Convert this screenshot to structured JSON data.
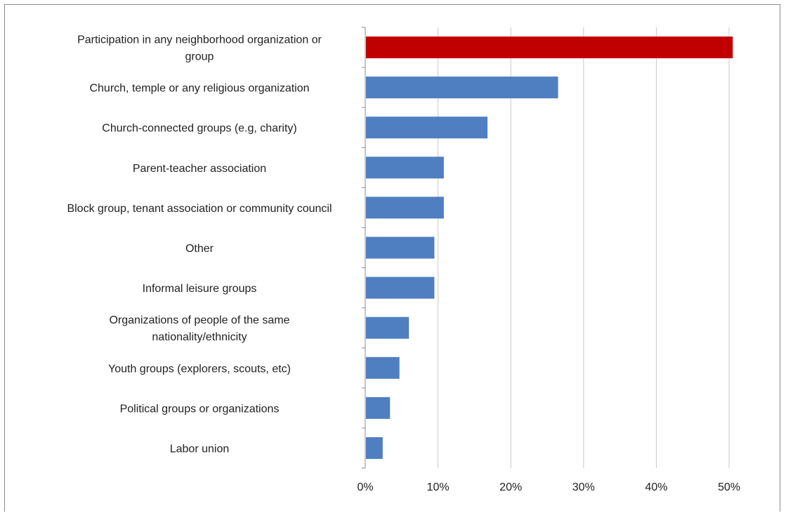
{
  "chart_data": {
    "type": "bar",
    "orientation": "horizontal",
    "title": "",
    "xlabel": "",
    "ylabel": "",
    "categories": [
      "Participation in any neighborhood organization or group",
      "Church, temple or any religious organization",
      "Church-connected groups (e.g, charity)",
      "Parent-teacher association",
      "Block group, tenant association or community council",
      "Other",
      "Informal leisure groups",
      "Organizations of people of the same nationality/ethnicity",
      "Youth groups (explorers, scouts, etc)",
      "Political groups or organizations",
      "Labor union"
    ],
    "category_label_lines": [
      [
        "Participation in any neighborhood organization or",
        "group"
      ],
      [
        "Church, temple or any religious organization"
      ],
      [
        "Church-connected groups (e.g, charity)"
      ],
      [
        "Parent-teacher association"
      ],
      [
        "Block group, tenant association or community council"
      ],
      [
        "Other"
      ],
      [
        "Informal leisure groups"
      ],
      [
        "Organizations of people of the same",
        "nationality/ethnicity"
      ],
      [
        "Youth groups (explorers, scouts, etc)"
      ],
      [
        "Political groups or organizations"
      ],
      [
        "Labor union"
      ]
    ],
    "values": [
      50.5,
      26.5,
      16.8,
      10.8,
      10.8,
      9.5,
      9.5,
      6.0,
      4.7,
      3.4,
      2.4
    ],
    "xlim": [
      0,
      50
    ],
    "xticks": [
      0,
      10,
      20,
      30,
      40,
      50
    ],
    "xtick_labels": [
      "0%",
      "10%",
      "20%",
      "30%",
      "40%",
      "50%"
    ],
    "grid": "vertical",
    "legend": "none",
    "colors": {
      "highlight": "#c00000",
      "bar": "#4f7fc1",
      "grid": "#c8c8c8",
      "axis": "#8c8c8c"
    },
    "highlight_index": 0
  }
}
